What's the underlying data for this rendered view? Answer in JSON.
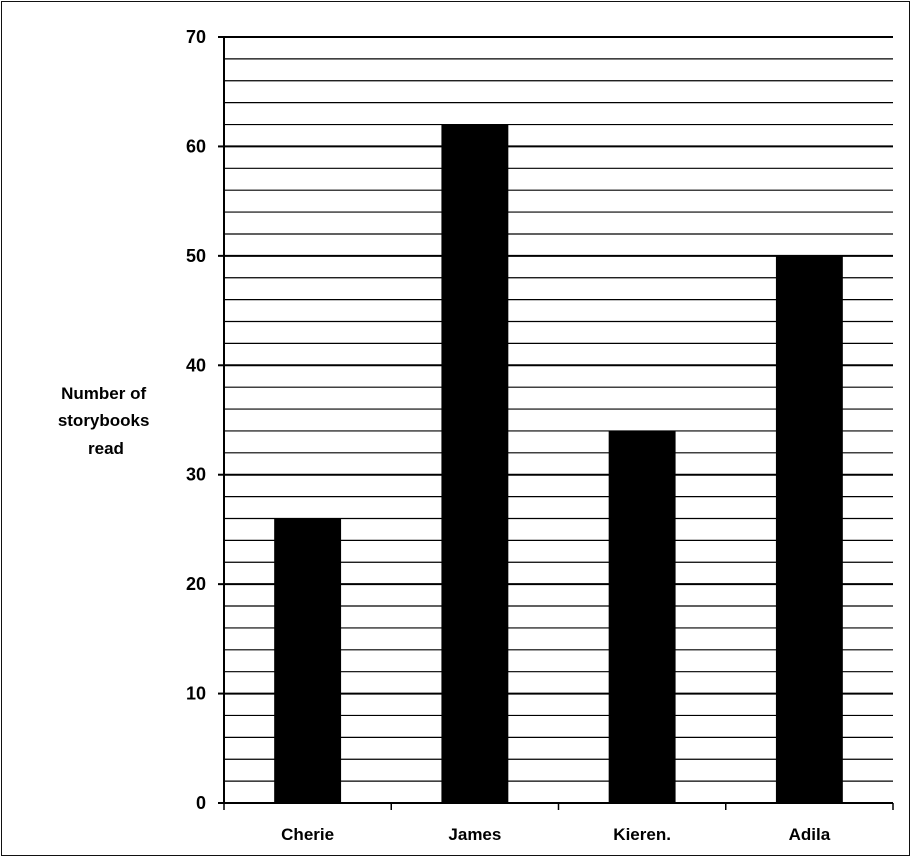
{
  "chart_data": {
    "type": "bar",
    "title": "",
    "xlabel": "",
    "ylabel_lines": [
      "Number of",
      "storybooks",
      "read"
    ],
    "categories": [
      "Cherie",
      "James",
      "Kieren.",
      "Adila"
    ],
    "values": [
      26,
      62,
      34,
      50
    ],
    "ylim": [
      0,
      70
    ],
    "yticks": [
      0,
      10,
      20,
      30,
      40,
      50,
      60,
      70
    ],
    "minor_grid_step": 2,
    "grid": true,
    "legend": "none",
    "bar_color": "#000000",
    "grid_color": "#000000"
  }
}
